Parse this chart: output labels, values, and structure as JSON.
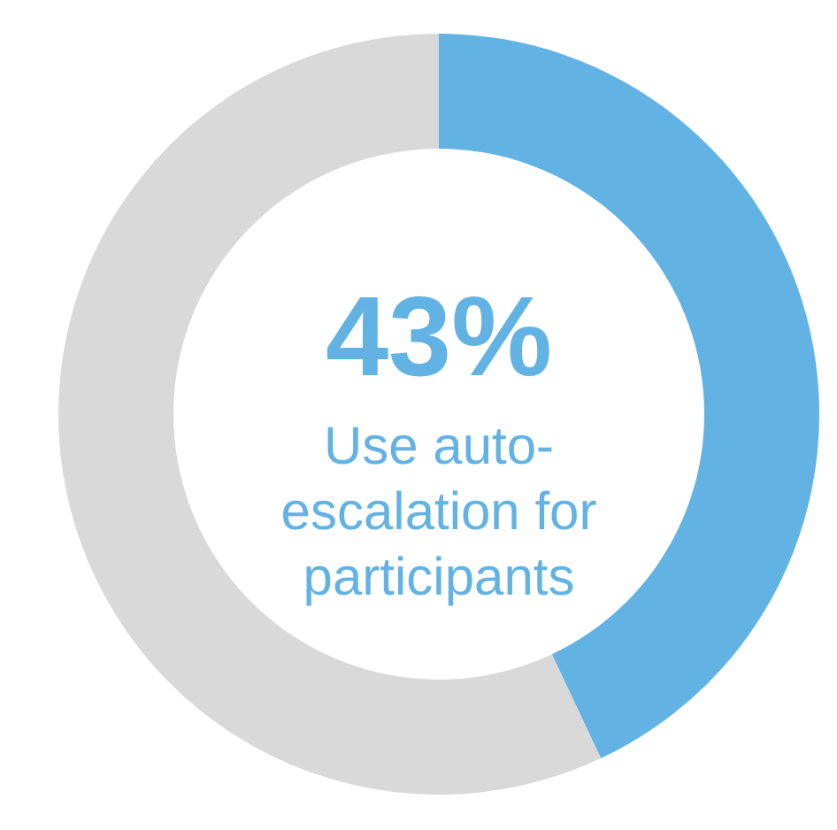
{
  "chart_data": {
    "type": "donut",
    "categories": [
      null,
      null
    ],
    "values": [
      43,
      57
    ],
    "colors": [
      "#62b3e4",
      "#d9d9d9"
    ],
    "value_labels": [
      "43%",
      null
    ],
    "annotations": [
      "Use auto-escalation for participants"
    ]
  }
}
